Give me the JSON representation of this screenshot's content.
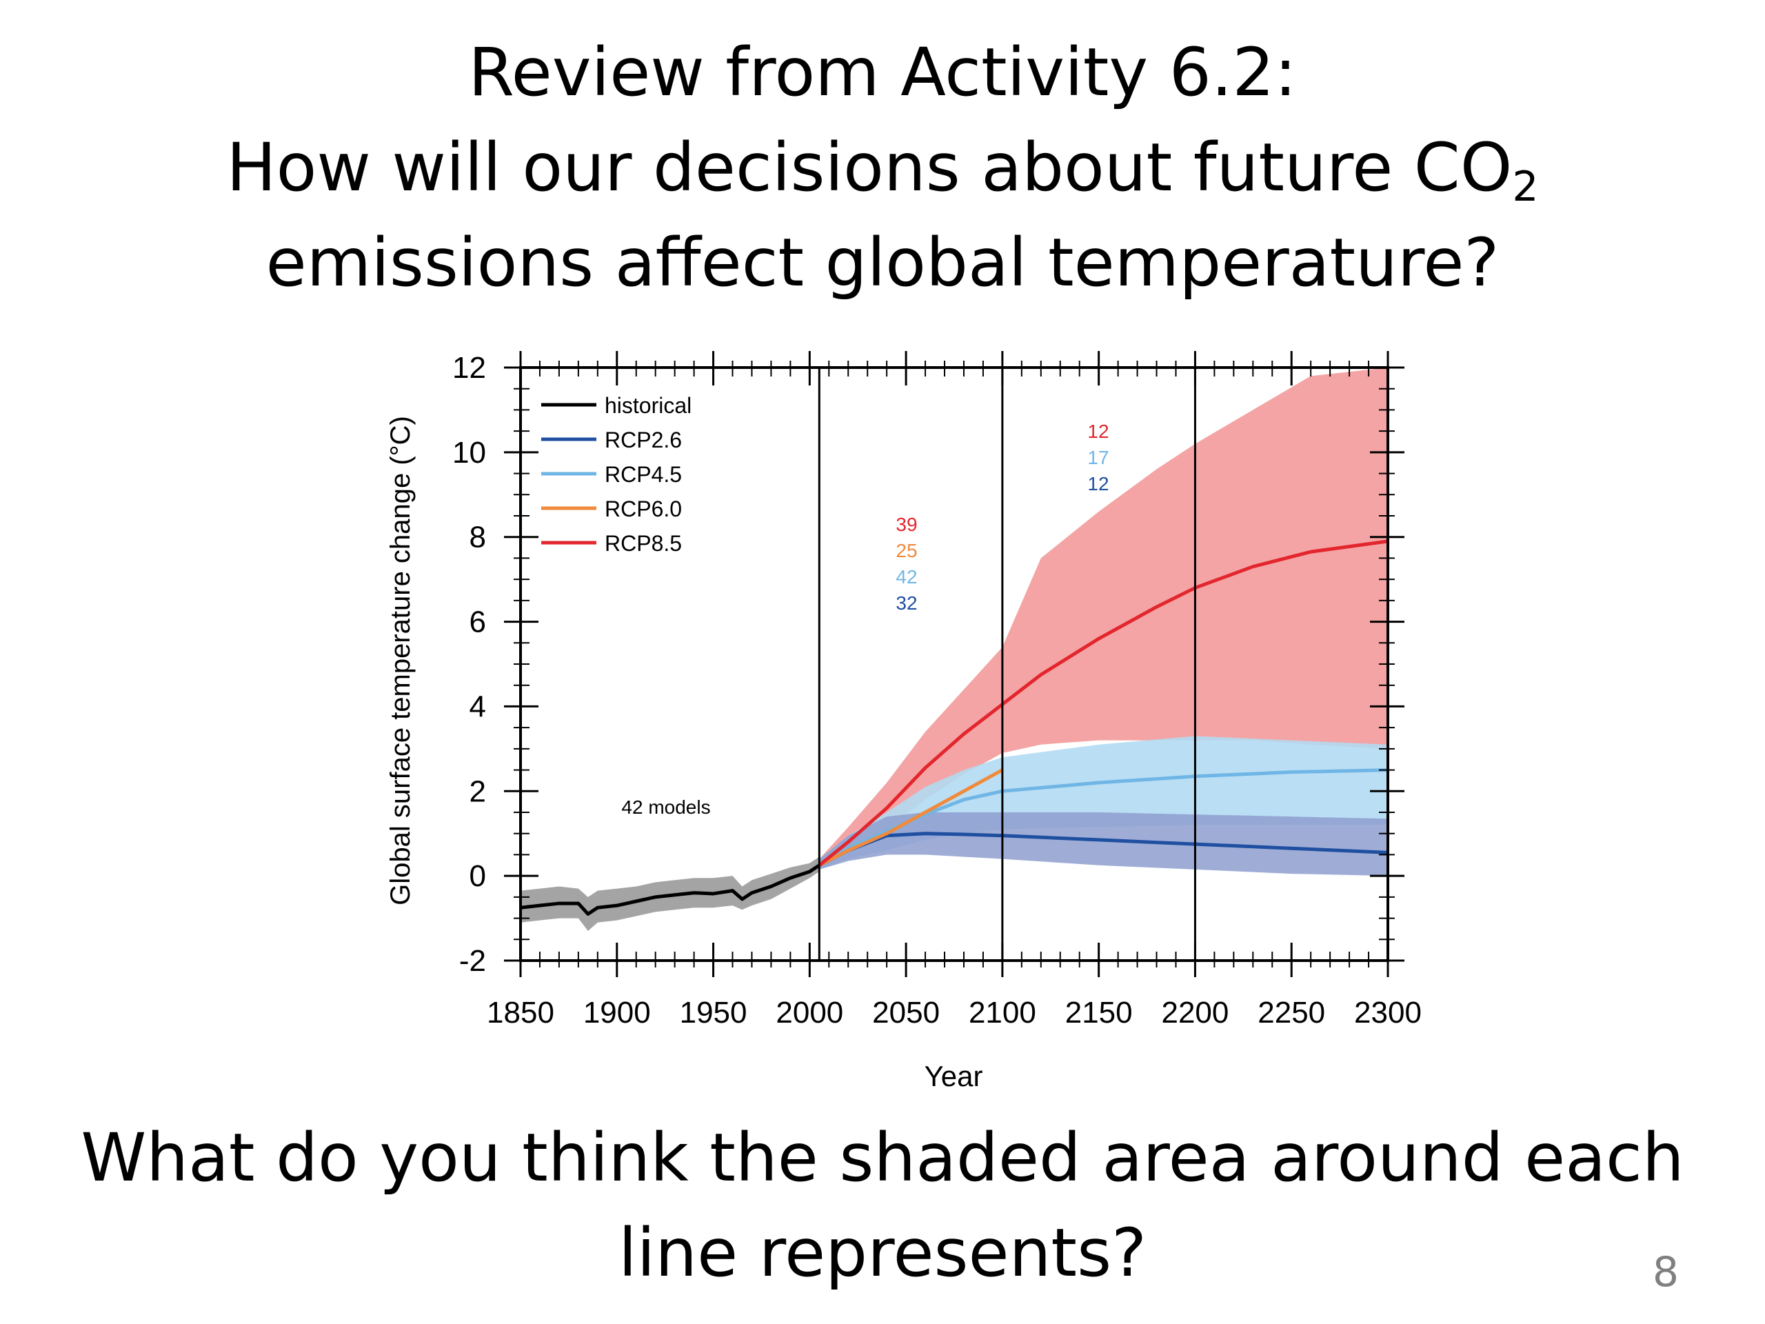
{
  "slide": {
    "title_line1": "Review from Activity 6.2:",
    "title_line2_main": "How will our decisions about future CO",
    "title_line2_sub": "2",
    "title_line3": "emissions affect global temperature?",
    "question_line1": "What do you think the shaded area around each",
    "question_line2": "line represents?",
    "page_number": "8"
  },
  "colors": {
    "historical": "#000000",
    "RCP2.6": "#1f4fa0",
    "RCP4.5": "#6fb6e6",
    "RCP6.0": "#f08a3c",
    "RCP8.5": "#e3262e",
    "shade_historical": "#9a9a9a",
    "shade_rcp26": "#8e9fcf",
    "shade_rcp45": "#b2daf2",
    "shade_rcp85": "#f39a9a"
  },
  "chart_data": {
    "type": "line",
    "xlabel": "Year",
    "ylabel": "Global surface temperature change (°C)",
    "xlim": [
      1850,
      2300
    ],
    "ylim": [
      -2,
      12
    ],
    "xticks": [
      1850,
      1900,
      1950,
      2000,
      2050,
      2100,
      2150,
      2200,
      2250,
      2300
    ],
    "yticks": [
      -2,
      0,
      2,
      4,
      6,
      8,
      10,
      12
    ],
    "period_dividers": [
      2005,
      2100,
      2200
    ],
    "legend_position": "top-left",
    "annotation": "42 models",
    "model_counts": {
      "2005-2100": [
        {
          "series": "RCP8.5",
          "value": "39"
        },
        {
          "series": "RCP6.0",
          "value": "25"
        },
        {
          "series": "RCP4.5",
          "value": "42"
        },
        {
          "series": "RCP2.6",
          "value": "32"
        }
      ],
      "2100-2300": [
        {
          "series": "RCP8.5",
          "value": "12"
        },
        {
          "series": "RCP4.5",
          "value": "17"
        },
        {
          "series": "RCP2.6",
          "value": "12"
        }
      ]
    },
    "series": [
      {
        "name": "historical",
        "x": [
          1850,
          1860,
          1870,
          1880,
          1885,
          1890,
          1900,
          1910,
          1920,
          1930,
          1940,
          1950,
          1960,
          1965,
          1970,
          1980,
          1990,
          2000,
          2005
        ],
        "y": [
          -0.75,
          -0.7,
          -0.65,
          -0.65,
          -0.9,
          -0.75,
          -0.7,
          -0.6,
          -0.5,
          -0.45,
          -0.4,
          -0.42,
          -0.35,
          -0.55,
          -0.4,
          -0.25,
          -0.05,
          0.1,
          0.25
        ],
        "lower": [
          -1.1,
          -1.05,
          -1.0,
          -1.0,
          -1.3,
          -1.1,
          -1.05,
          -0.95,
          -0.85,
          -0.8,
          -0.75,
          -0.75,
          -0.7,
          -0.8,
          -0.7,
          -0.55,
          -0.3,
          -0.05,
          0.1
        ],
        "upper": [
          -0.35,
          -0.3,
          -0.25,
          -0.3,
          -0.5,
          -0.35,
          -0.3,
          -0.25,
          -0.15,
          -0.1,
          -0.05,
          -0.05,
          0.0,
          -0.25,
          -0.1,
          0.05,
          0.2,
          0.3,
          0.45
        ]
      },
      {
        "name": "RCP2.6",
        "x": [
          2005,
          2020,
          2040,
          2060,
          2080,
          2100,
          2150,
          2200,
          2250,
          2300
        ],
        "y": [
          0.25,
          0.6,
          0.95,
          1.0,
          0.98,
          0.95,
          0.85,
          0.75,
          0.65,
          0.55
        ],
        "lower": [
          0.15,
          0.35,
          0.5,
          0.5,
          0.45,
          0.4,
          0.25,
          0.15,
          0.05,
          0.0
        ],
        "upper": [
          0.4,
          0.95,
          1.4,
          1.5,
          1.5,
          1.5,
          1.5,
          1.45,
          1.4,
          1.35
        ]
      },
      {
        "name": "RCP4.5",
        "x": [
          2005,
          2020,
          2040,
          2060,
          2080,
          2100,
          2150,
          2200,
          2250,
          2300
        ],
        "y": [
          0.25,
          0.65,
          1.05,
          1.45,
          1.8,
          2.0,
          2.2,
          2.35,
          2.45,
          2.5
        ],
        "lower": [
          0.15,
          0.4,
          0.6,
          0.85,
          1.0,
          1.1,
          1.15,
          1.2,
          1.2,
          1.2
        ],
        "upper": [
          0.4,
          0.95,
          1.5,
          2.1,
          2.5,
          2.8,
          3.1,
          3.3,
          3.2,
          3.1
        ]
      },
      {
        "name": "RCP6.0",
        "x": [
          2005,
          2020,
          2040,
          2060,
          2080,
          2100
        ],
        "y": [
          0.25,
          0.6,
          1.0,
          1.5,
          2.0,
          2.5
        ]
      },
      {
        "name": "RCP8.5",
        "x": [
          2005,
          2020,
          2040,
          2060,
          2080,
          2100,
          2120,
          2150,
          2180,
          2200,
          2230,
          2260,
          2300
        ],
        "y": [
          0.25,
          0.8,
          1.6,
          2.55,
          3.35,
          4.05,
          4.75,
          5.6,
          6.35,
          6.8,
          7.3,
          7.65,
          7.9
        ],
        "lower": [
          0.15,
          0.5,
          1.1,
          1.8,
          2.4,
          2.9,
          3.1,
          3.2,
          3.2,
          3.2,
          3.2,
          3.1,
          3.0
        ],
        "upper": [
          0.4,
          1.15,
          2.2,
          3.4,
          4.4,
          5.4,
          7.5,
          8.6,
          9.6,
          10.2,
          11.0,
          11.8,
          12.0
        ]
      }
    ]
  }
}
